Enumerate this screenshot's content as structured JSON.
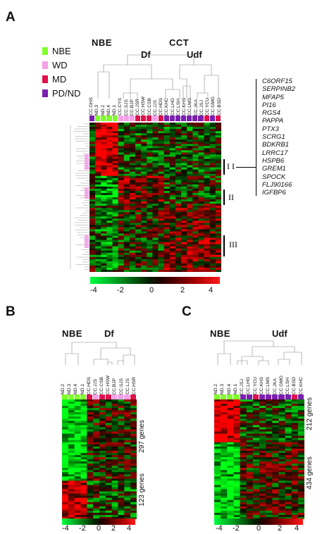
{
  "panels": {
    "a": {
      "letter": "A",
      "group_labels": {
        "nbe": "NBE",
        "cct": "CCT",
        "df": "Df",
        "udf": "Udf"
      },
      "samples": [
        "CC.GHS",
        "ND.3",
        "ND.2",
        "ND.4",
        "ND.1",
        "CC.CYS",
        "CC.SJS",
        "CC.BJP",
        "CC.JSR",
        "CC.HSW",
        "CC.CSB",
        "CC.JJS",
        "CC.HDS",
        "CC.KHC",
        "CC.LHG",
        "CC.LSH",
        "CC.KHS",
        "CC.LMS",
        "CC.JKA",
        "CC.JSJ",
        "CC.YCU",
        "CC.GMG",
        "CC.BSD"
      ],
      "sample_classes": [
        "pd",
        "nbe",
        "nbe",
        "nbe",
        "nbe",
        "wd",
        "wd",
        "wd",
        "md",
        "md",
        "md",
        "wd",
        "md",
        "pd",
        "pd",
        "pd",
        "pd",
        "pd",
        "pd",
        "pd",
        "md",
        "pd",
        "md"
      ],
      "genes": [
        "C6ORF15",
        "SERPINB2",
        "MFAP5",
        "PI16",
        "RGS4",
        "PAPPA",
        "PTX3",
        "SCRG1",
        "BDKRB1",
        "LRRC17",
        "HSPB6",
        "GREM1",
        "SPOCK",
        "FLJ90166",
        "IGFBP6"
      ],
      "clusters": [
        "I I",
        "II",
        "III"
      ],
      "scale_ticks": [
        "-4",
        "-2",
        "0",
        "2",
        "4"
      ]
    },
    "b": {
      "letter": "B",
      "group_labels": {
        "nbe": "NBE",
        "df": "Df"
      },
      "samples": [
        "ND.2",
        "ND.3",
        "ND.4",
        "ND.1",
        "CC.HDS",
        "CC.JJS",
        "CC.CSB",
        "CC.HSW",
        "CC.BJP",
        "CC.SJS",
        "CC.LJS",
        "CC.HSR"
      ],
      "sample_classes": [
        "nbe",
        "nbe",
        "nbe",
        "nbe",
        "md",
        "wd",
        "md",
        "md",
        "wd",
        "wd",
        "wd",
        "md"
      ],
      "gene_counts": [
        "297 genes",
        "123 genes"
      ],
      "scale_ticks": [
        "-4",
        "-2",
        "0",
        "2",
        "4"
      ]
    },
    "c": {
      "letter": "C",
      "group_labels": {
        "nbe": "NBE",
        "udf": "Udf"
      },
      "samples": [
        "ND.2",
        "ND.3",
        "ND.4",
        "ND.1",
        "CC.JSJ",
        "CC.LHG",
        "CC.YCU",
        "CC.KHS",
        "CC.LMS",
        "CC.JKA",
        "CC.GMG",
        "CC.LSH",
        "CC.BSD",
        "CC.KHC"
      ],
      "sample_classes": [
        "nbe",
        "nbe",
        "nbe",
        "nbe",
        "pd",
        "pd",
        "md",
        "pd",
        "pd",
        "pd",
        "pd",
        "pd",
        "md",
        "pd"
      ],
      "gene_counts": [
        "212 genes",
        "434 genes"
      ],
      "scale_ticks": [
        "-4",
        "-2",
        "0",
        "2",
        "4"
      ]
    }
  },
  "legend": [
    {
      "key": "nbe",
      "label": "NBE",
      "color": "#7fff2a"
    },
    {
      "key": "wd",
      "label": "WD",
      "color": "#f5a0e8"
    },
    {
      "key": "md",
      "label": "MD",
      "color": "#e0104e"
    },
    {
      "key": "pd",
      "label": "PD/ND",
      "color": "#7a1fb0"
    }
  ]
}
